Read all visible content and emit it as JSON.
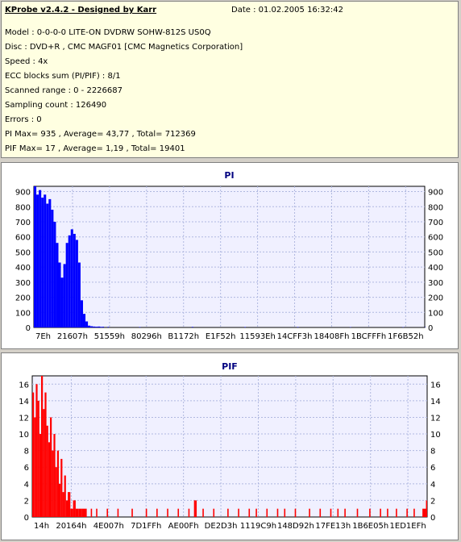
{
  "header": {
    "title": "KProbe v2.4.2 - Designed by Karr",
    "date": "Date : 01.02.2005 16:32:42"
  },
  "info_lines": [
    "Model : 0-0-0-0 LITE-ON DVDRW SOHW-812S  US0Q",
    "Disc : DVD+R , CMC MAGF01 [CMC Magnetics Corporation]",
    "Speed : 4x",
    "ECC blocks sum (PI/PIF) : 8/1",
    "Scanned range : 0 - 2226687",
    "Sampling count : 126490",
    "Errors : 0",
    "PI Max= 935 , Average= 43,77 , Total= 712369",
    "PIF Max= 17 , Average= 1,19 , Total= 19401"
  ],
  "colors": {
    "pi": "#0000ff",
    "pif": "#ff0000",
    "title": "#000080",
    "plot_bg": "#f0f0ff",
    "grid": "#b0b8e0"
  },
  "chart_data": [
    {
      "type": "bar",
      "title": "PI",
      "ylim": [
        0,
        935
      ],
      "yticks": [
        0,
        100,
        200,
        300,
        400,
        500,
        600,
        700,
        800,
        900
      ],
      "xticks": [
        "7Eh",
        "21607h",
        "51559h",
        "80296h",
        "B1172h",
        "E1F52h",
        "11593Eh",
        "14CFF3h",
        "18408Fh",
        "1BCFFFh",
        "1F6B52h"
      ],
      "grid": true,
      "x_range": [
        0,
        2226687
      ],
      "x": [
        0,
        14000,
        28000,
        42000,
        56000,
        70000,
        84000,
        98000,
        112000,
        126000,
        140000,
        154000,
        168000,
        182000,
        196000,
        210000,
        224000,
        238000,
        252000,
        266000,
        280000,
        294000,
        308000,
        322000,
        336000,
        350000,
        364000,
        378000,
        392000,
        420000,
        600000,
        900000,
        1200000,
        1500000,
        1800000,
        2100000,
        2226687
      ],
      "values": [
        935,
        880,
        910,
        860,
        880,
        820,
        850,
        780,
        700,
        560,
        430,
        330,
        420,
        560,
        610,
        650,
        620,
        580,
        430,
        180,
        90,
        40,
        12,
        8,
        6,
        5,
        6,
        4,
        5,
        4,
        3,
        4,
        3,
        3,
        2,
        2,
        2
      ]
    },
    {
      "type": "bar",
      "title": "PIF",
      "ylim": [
        0,
        17
      ],
      "yticks": [
        0,
        2,
        4,
        6,
        8,
        10,
        12,
        14,
        16
      ],
      "xticks": [
        "14h",
        "20164h",
        "4E007h",
        "7D1FFh",
        "AE00Fh",
        "DE2D3h",
        "1119C9h",
        "148D92h",
        "17FE13h",
        "1B6E05h",
        "1ED1EFh"
      ],
      "grid": true,
      "x_range": [
        0,
        2226687
      ],
      "x": [
        0,
        10000,
        20000,
        30000,
        40000,
        50000,
        60000,
        70000,
        80000,
        90000,
        100000,
        110000,
        120000,
        130000,
        140000,
        150000,
        160000,
        170000,
        180000,
        190000,
        200000,
        215000,
        230000,
        245000,
        260000,
        280000,
        300000,
        330000,
        360000,
        420000,
        480000,
        560000,
        640000,
        700000,
        760000,
        820000,
        880000,
        912000,
        920000,
        960000,
        1020000,
        1100000,
        1160000,
        1220000,
        1260000,
        1320000,
        1380000,
        1420000,
        1480000,
        1560000,
        1620000,
        1680000,
        1720000,
        1760000,
        1830000,
        1900000,
        1960000,
        2000000,
        2050000,
        2110000,
        2150000,
        2200000,
        2220000
      ],
      "values": [
        15,
        12,
        16,
        14,
        10,
        17,
        13,
        15,
        11,
        9,
        12,
        8,
        10,
        6,
        8,
        4,
        7,
        3,
        5,
        2,
        3,
        1,
        2,
        1,
        1,
        1,
        1,
        1,
        1,
        1,
        1,
        1,
        1,
        1,
        1,
        1,
        1,
        2,
        2,
        1,
        1,
        1,
        1,
        1,
        1,
        1,
        1,
        1,
        1,
        1,
        1,
        1,
        1,
        1,
        1,
        1,
        1,
        1,
        1,
        1,
        1,
        1,
        2
      ]
    }
  ]
}
